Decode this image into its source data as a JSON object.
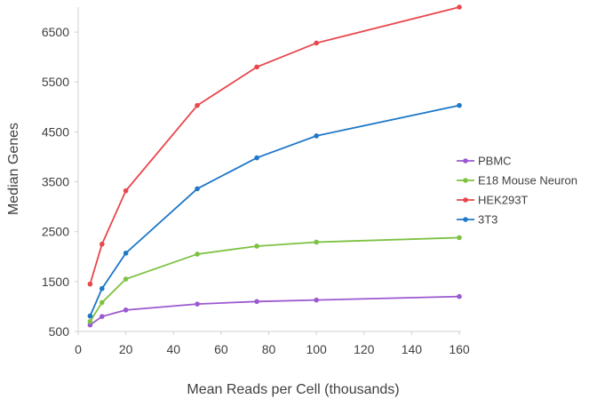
{
  "chart_data": {
    "type": "line",
    "title": "",
    "xlabel": "Mean Reads per Cell (thousands)",
    "ylabel": "Median Genes",
    "xlim": [
      0,
      160
    ],
    "ylim": [
      500,
      7000
    ],
    "x_ticks": [
      "0",
      "20",
      "40",
      "60",
      "80",
      "100",
      "120",
      "140",
      "160"
    ],
    "y_ticks": [
      "500",
      "1500",
      "2500",
      "3500",
      "4500",
      "5500",
      "6500"
    ],
    "grid": false,
    "legend_position": "right",
    "x": [
      5,
      10,
      20,
      50,
      75,
      100,
      160
    ],
    "series": [
      {
        "name": "PBMC",
        "color": "#9b59d0",
        "values": [
          630,
          800,
          930,
          1050,
          1100,
          1130,
          1200
        ]
      },
      {
        "name": "E18 Mouse Neuron",
        "color": "#7dc242",
        "values": [
          700,
          1080,
          1550,
          2050,
          2210,
          2290,
          2380
        ]
      },
      {
        "name": "HEK293T",
        "color": "#e8474c",
        "values": [
          1450,
          2250,
          3320,
          5030,
          5800,
          6280,
          7000
        ]
      },
      {
        "name": "3T3",
        "color": "#1f78c8",
        "values": [
          810,
          1360,
          2070,
          3360,
          3980,
          4420,
          5030
        ]
      }
    ]
  }
}
